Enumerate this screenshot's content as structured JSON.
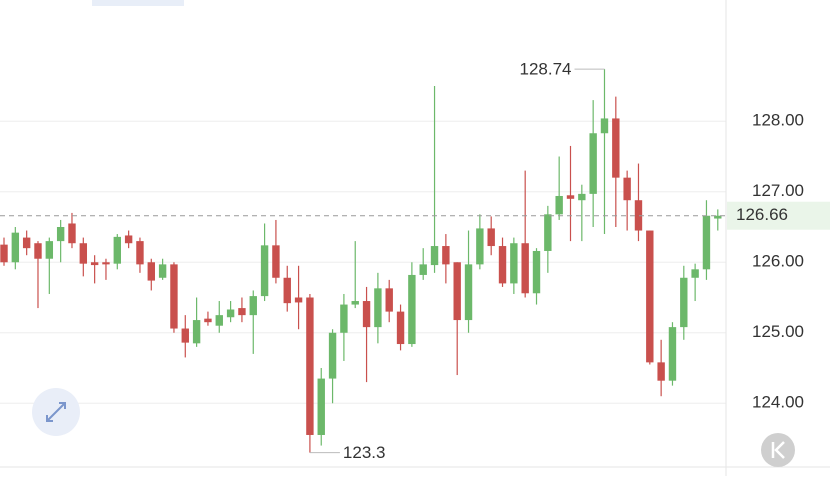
{
  "chart_data": {
    "type": "candlestick",
    "ylim": [
      123.11,
      129.72
    ],
    "yticks": [
      {
        "value": 124,
        "label": "124.00"
      },
      {
        "value": 125,
        "label": "125.00"
      },
      {
        "value": 126,
        "label": "126.00"
      },
      {
        "value": 127,
        "label": "127.00"
      },
      {
        "value": 128,
        "label": "128.00"
      }
    ],
    "grid": true,
    "up_color": "#6cb86a",
    "down_color": "#c9504d",
    "last_price": {
      "value": 126.66,
      "label": "126.66"
    },
    "annotations": [
      128.74,
      123.3
    ],
    "open": [
      126.25,
      126.0,
      126.35,
      126.27,
      126.05,
      126.3,
      126.55,
      126.27,
      126.0,
      126.0,
      125.98,
      126.38,
      126.3,
      126.0,
      125.78,
      125.97,
      125.06,
      124.85,
      125.2,
      125.1,
      125.22,
      125.35,
      125.25,
      125.52,
      126.24,
      125.78,
      125.5,
      125.5,
      123.55,
      124.35,
      125.0,
      125.4,
      125.45,
      125.08,
      125.63,
      125.3,
      124.84,
      125.82,
      125.96,
      126.23,
      126.0,
      125.18,
      125.97,
      126.48,
      126.23,
      125.7,
      126.27,
      125.56,
      126.16,
      126.68,
      126.95,
      126.88,
      126.97,
      127.83,
      128.04,
      127.2,
      126.88,
      126.45,
      124.58,
      124.32,
      125.08,
      125.78,
      125.9,
      126.62
    ],
    "high": [
      126.35,
      126.5,
      126.45,
      126.3,
      126.35,
      126.6,
      126.7,
      126.35,
      126.1,
      126.05,
      126.4,
      126.45,
      126.35,
      126.05,
      126.05,
      126.0,
      125.25,
      125.5,
      125.3,
      125.45,
      125.45,
      125.5,
      125.6,
      126.55,
      126.6,
      125.95,
      125.95,
      125.55,
      124.5,
      125.05,
      125.55,
      126.3,
      125.65,
      125.85,
      125.75,
      125.4,
      126.0,
      126.2,
      128.5,
      126.4,
      126.0,
      126.45,
      126.68,
      126.65,
      126.35,
      126.35,
      127.3,
      126.2,
      126.8,
      127.5,
      127.65,
      127.1,
      128.3,
      128.74,
      128.35,
      127.3,
      127.4,
      126.45,
      124.9,
      125.15,
      125.95,
      125.98,
      126.88,
      126.75
    ],
    "low": [
      125.95,
      125.9,
      126.1,
      125.35,
      125.55,
      126.0,
      126.2,
      125.8,
      125.7,
      125.75,
      125.9,
      126.2,
      125.85,
      125.6,
      125.75,
      125.0,
      124.65,
      124.8,
      125.1,
      125.0,
      125.15,
      125.15,
      124.7,
      125.45,
      125.7,
      125.3,
      125.05,
      123.3,
      123.4,
      124.0,
      124.6,
      125.35,
      124.3,
      124.85,
      125.15,
      124.75,
      124.8,
      125.75,
      125.85,
      125.7,
      124.4,
      125.0,
      125.9,
      126.1,
      125.65,
      125.55,
      125.5,
      125.4,
      125.85,
      126.6,
      126.3,
      126.3,
      126.5,
      126.4,
      126.5,
      126.45,
      126.3,
      124.55,
      124.1,
      124.25,
      124.9,
      125.45,
      125.75,
      126.45
    ],
    "close": [
      126.0,
      126.42,
      126.2,
      126.05,
      126.3,
      126.5,
      126.27,
      125.98,
      125.96,
      125.97,
      126.36,
      126.27,
      125.97,
      125.74,
      125.97,
      125.06,
      124.86,
      125.18,
      125.15,
      125.25,
      125.33,
      125.25,
      125.52,
      126.24,
      125.78,
      125.42,
      125.43,
      123.55,
      124.35,
      125.0,
      125.4,
      125.45,
      125.08,
      125.63,
      125.3,
      124.84,
      125.82,
      125.97,
      126.23,
      125.97,
      125.18,
      125.97,
      126.48,
      126.23,
      125.7,
      126.27,
      125.56,
      126.16,
      126.68,
      126.94,
      126.9,
      126.97,
      127.83,
      128.04,
      127.2,
      126.88,
      126.45,
      124.58,
      124.32,
      125.08,
      125.78,
      125.9,
      126.66,
      126.66
    ]
  }
}
